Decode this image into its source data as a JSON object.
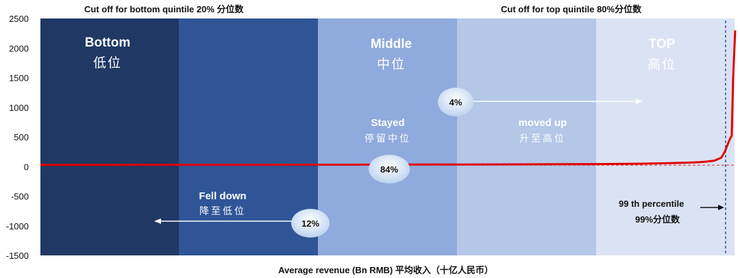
{
  "chart_data": {
    "type": "line",
    "top_left_caption": "Cut off for bottom quintile 20% 分位数",
    "top_right_caption": "Cut off for top quintile  80%分位数",
    "xlabel": "Average revenue (Bn RMB) 平均收入（十亿人民币）",
    "ylabel": "",
    "ylim": [
      -1500,
      2500
    ],
    "yticks": [
      "2500",
      "2000",
      "1500",
      "1000",
      "500",
      "0",
      "-500",
      "-1000",
      "-1500"
    ],
    "ytick_values": [
      2500,
      2000,
      1500,
      1000,
      500,
      0,
      -500,
      -1000,
      -1500
    ],
    "grid": false,
    "bands": [
      {
        "label_en": "Bottom",
        "label_zh": "低位",
        "color": "#1f3864"
      },
      {
        "label_en": "",
        "label_zh": "",
        "color": "#2f5597"
      },
      {
        "label_en": "Middle",
        "label_zh": "中位",
        "color": "#8faadc"
      },
      {
        "label_en": "",
        "label_zh": "",
        "color": "#b4c7e7"
      },
      {
        "label_en": "TOP",
        "label_zh": "高位",
        "color": "#dae3f3"
      }
    ],
    "transitions": [
      {
        "pct": "4%",
        "label_en": "moved up",
        "label_zh": "升至高位",
        "direction": "right"
      },
      {
        "pct": "84%",
        "label_en": "Stayed",
        "label_zh": "停留中位",
        "direction": "none"
      },
      {
        "pct": "12%",
        "label_en": "Fell down",
        "label_zh": "降至低位",
        "direction": "left"
      }
    ],
    "percentile_note": {
      "line1": "99 th percentile",
      "line2": "99%分位数"
    },
    "series": [
      {
        "color": "#e00000",
        "x": [
          0,
          10,
          20,
          30,
          40,
          50,
          55,
          60,
          65,
          70,
          75,
          80,
          83,
          86,
          88,
          90,
          92,
          94,
          95,
          96,
          97,
          98,
          98.5,
          99,
          99.3,
          99.5,
          99.7,
          100
        ],
        "y": [
          30,
          30,
          31,
          31,
          32,
          33,
          34,
          35,
          36,
          38,
          40,
          42,
          45,
          48,
          52,
          56,
          62,
          70,
          76,
          85,
          100,
          150,
          250,
          400,
          480,
          520,
          1500,
          2300
        ]
      }
    ],
    "colors": {
      "zero_line": "#e00000",
      "cutoff_line": "#2f5597",
      "bubble": "#dae8f8"
    }
  }
}
